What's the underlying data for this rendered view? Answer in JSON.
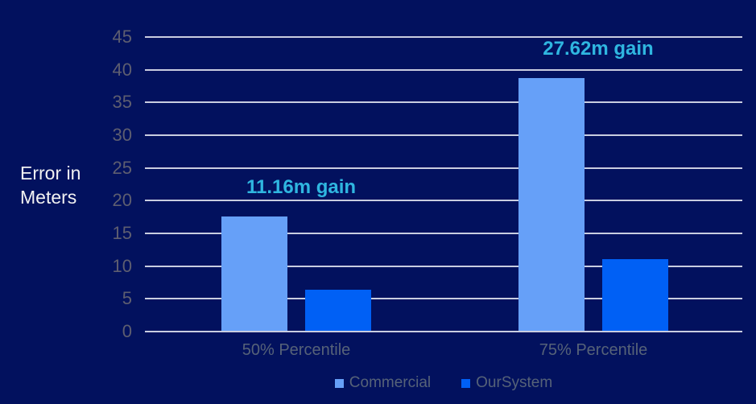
{
  "labels": {
    "y_axis_multiline": "Error in\nMeters"
  },
  "colors": {
    "background": "#02115e",
    "gridline": "#c9cde0",
    "annotation": "#2fb6e0",
    "tick_label": "#5e5e70",
    "category_label": "#566278",
    "legend_label": "#566278",
    "y_axis_title": "#f2f2f2"
  },
  "chart_data": {
    "type": "bar",
    "title": "",
    "ylabel": "Error in Meters",
    "xlabel": "",
    "categories": [
      "50% Percentile",
      "75% Percentile"
    ],
    "series": [
      {
        "name": "Commercial",
        "color": "#66a0f8",
        "values": [
          17.6,
          38.7
        ]
      },
      {
        "name": "OurSystem",
        "color": "#0060f5",
        "values": [
          6.44,
          11.08
        ]
      }
    ],
    "annotations": [
      {
        "text": "11.16m gain",
        "category_index": 0
      },
      {
        "text": "27.62m gain",
        "category_index": 1
      }
    ],
    "yticks": [
      0,
      5,
      10,
      15,
      20,
      25,
      30,
      35,
      40,
      45
    ],
    "ylim": [
      0,
      45
    ],
    "grid": true,
    "legend_position": "bottom"
  }
}
